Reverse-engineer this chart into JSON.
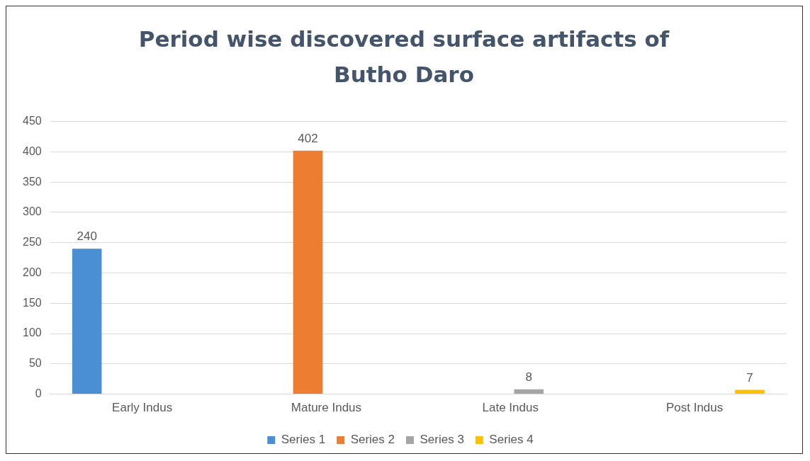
{
  "chart_data": {
    "type": "bar",
    "title": "Period wise discovered surface artifacts of Butho Daro",
    "categories": [
      "Early Indus",
      "Mature Indus",
      "Late Indus",
      "Post Indus"
    ],
    "series": [
      {
        "name": "Series 1",
        "color": "#4a8fd4",
        "values": [
          240,
          null,
          null,
          null
        ]
      },
      {
        "name": "Series 2",
        "color": "#ed7d31",
        "values": [
          null,
          402,
          null,
          null
        ]
      },
      {
        "name": "Series 3",
        "color": "#a5a5a5",
        "values": [
          null,
          null,
          8,
          null
        ]
      },
      {
        "name": "Series 4",
        "color": "#ffc000",
        "values": [
          null,
          null,
          null,
          7
        ]
      }
    ],
    "ylim": [
      0,
      450
    ],
    "yticks": [
      0,
      50,
      100,
      150,
      200,
      250,
      300,
      350,
      400,
      450
    ],
    "grid": "y",
    "legend": "bottom",
    "data_labels": true
  }
}
